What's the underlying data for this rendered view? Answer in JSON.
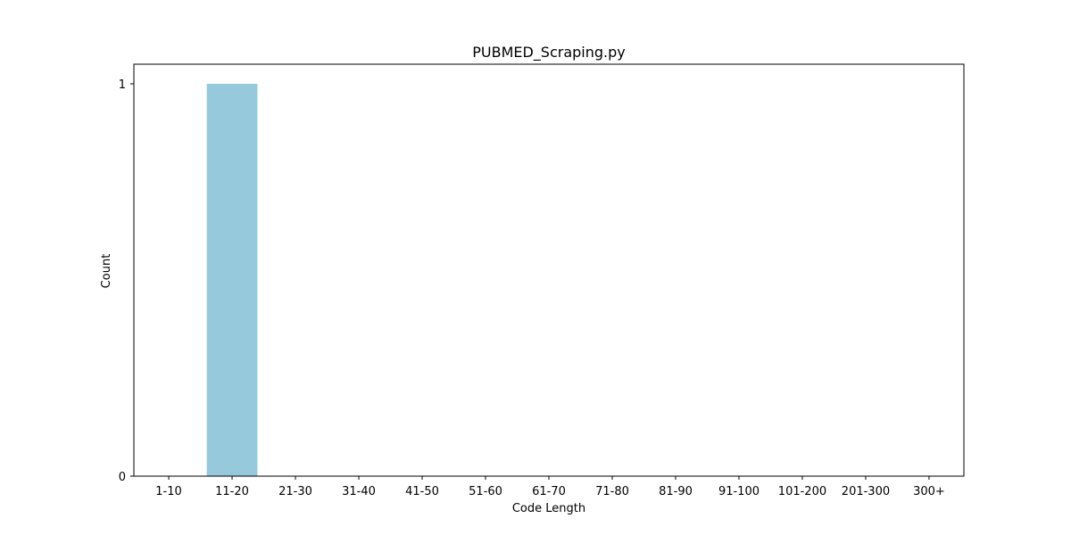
{
  "chart_data": {
    "type": "bar",
    "title": "PUBMED_Scraping.py",
    "xlabel": "Code Length",
    "ylabel": "Count",
    "categories": [
      "1-10",
      "11-20",
      "21-30",
      "31-40",
      "41-50",
      "51-60",
      "61-70",
      "71-80",
      "81-90",
      "91-100",
      "101-200",
      "201-300",
      "300+"
    ],
    "values": [
      0,
      1,
      0,
      0,
      0,
      0,
      0,
      0,
      0,
      0,
      0,
      0,
      0
    ],
    "yticks": [
      0,
      1
    ],
    "ylim": [
      0,
      1.05
    ],
    "grid": false,
    "legend": "none",
    "bar_color": "#96c9dc"
  }
}
